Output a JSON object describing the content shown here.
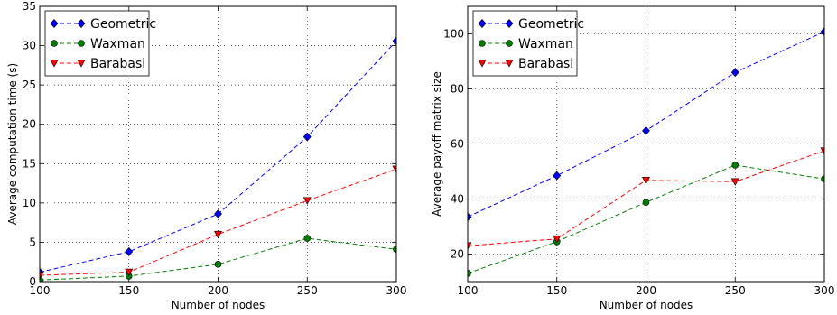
{
  "chart_data": [
    {
      "type": "line",
      "xlabel": "Number of nodes",
      "ylabel": "Average computation time (s)",
      "x": [
        100,
        150,
        200,
        250,
        300
      ],
      "xlim": [
        100,
        300
      ],
      "ylim": [
        0,
        35
      ],
      "xticks": [
        100,
        150,
        200,
        250,
        300
      ],
      "yticks": [
        0,
        5,
        10,
        15,
        20,
        25,
        30,
        35
      ],
      "grid": true,
      "legend_position": "top-left",
      "series": [
        {
          "name": "Geometric",
          "color": "#0000ff",
          "marker": "diamond",
          "values": [
            1.2,
            3.8,
            8.6,
            18.4,
            30.6
          ]
        },
        {
          "name": "Waxman",
          "color": "#008000",
          "marker": "circle",
          "values": [
            0.2,
            0.7,
            2.2,
            5.5,
            4.1
          ]
        },
        {
          "name": "Barabasi",
          "color": "#ff0000",
          "marker": "triangle-down",
          "values": [
            0.8,
            1.2,
            6.0,
            10.3,
            14.3
          ]
        }
      ]
    },
    {
      "type": "line",
      "xlabel": "Number of nodes",
      "ylabel": "Average payoff matrix size",
      "x": [
        100,
        150,
        200,
        250,
        300
      ],
      "xlim": [
        100,
        300
      ],
      "ylim": [
        10,
        110
      ],
      "xticks": [
        100,
        150,
        200,
        250,
        300
      ],
      "yticks": [
        20,
        40,
        60,
        80,
        100
      ],
      "grid": true,
      "legend_position": "top-left",
      "series": [
        {
          "name": "Geometric",
          "color": "#0000ff",
          "marker": "diamond",
          "values": [
            33.5,
            48.5,
            64.8,
            86.0,
            100.8
          ]
        },
        {
          "name": "Waxman",
          "color": "#008000",
          "marker": "circle",
          "values": [
            13.0,
            24.5,
            38.8,
            52.3,
            47.3
          ]
        },
        {
          "name": "Barabasi",
          "color": "#ff0000",
          "marker": "triangle-down",
          "values": [
            23.0,
            25.5,
            46.8,
            46.3,
            57.5
          ]
        }
      ]
    }
  ]
}
